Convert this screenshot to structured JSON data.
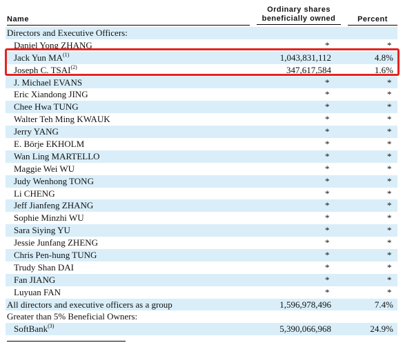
{
  "header": {
    "name": "Name",
    "shares_line1": "Ordinary shares",
    "shares_line2": "beneficially owned",
    "percent": "Percent"
  },
  "rows": [
    {
      "name": "Directors and Executive Officers:",
      "shares": "",
      "percent": "",
      "indent": false
    },
    {
      "name": "Daniel Yong ZHANG",
      "shares": "*",
      "percent": "*",
      "indent": true
    },
    {
      "name": "Jack Yun MA",
      "sup": "(1)",
      "shares": "1,043,831,112",
      "percent": "4.8%",
      "indent": true
    },
    {
      "name": "Joseph C. TSAI",
      "sup": "(2)",
      "shares": "347,617,584",
      "percent": "1.6%",
      "indent": true
    },
    {
      "name": "J. Michael EVANS",
      "shares": "*",
      "percent": "*",
      "indent": true
    },
    {
      "name": "Eric Xiandong JING",
      "shares": "*",
      "percent": "*",
      "indent": true
    },
    {
      "name": "Chee Hwa TUNG",
      "shares": "*",
      "percent": "*",
      "indent": true
    },
    {
      "name": "Walter Teh Ming KWAUK",
      "shares": "*",
      "percent": "*",
      "indent": true
    },
    {
      "name": "Jerry YANG",
      "shares": "*",
      "percent": "*",
      "indent": true
    },
    {
      "name": "E. Börje EKHOLM",
      "shares": "*",
      "percent": "*",
      "indent": true
    },
    {
      "name": "Wan Ling MARTELLO",
      "shares": "*",
      "percent": "*",
      "indent": true
    },
    {
      "name": "Maggie Wei WU",
      "shares": "*",
      "percent": "*",
      "indent": true
    },
    {
      "name": "Judy Wenhong TONG",
      "shares": "*",
      "percent": "*",
      "indent": true
    },
    {
      "name": "Li CHENG",
      "shares": "*",
      "percent": "*",
      "indent": true
    },
    {
      "name": "Jeff Jianfeng ZHANG",
      "shares": "*",
      "percent": "*",
      "indent": true
    },
    {
      "name": "Sophie Minzhi WU",
      "shares": "*",
      "percent": "*",
      "indent": true
    },
    {
      "name": "Sara Siying YU",
      "shares": "*",
      "percent": "*",
      "indent": true
    },
    {
      "name": "Jessie Junfang ZHENG",
      "shares": "*",
      "percent": "*",
      "indent": true
    },
    {
      "name": "Chris Pen-hung TUNG",
      "shares": "*",
      "percent": "*",
      "indent": true
    },
    {
      "name": "Trudy Shan DAI",
      "shares": "*",
      "percent": "*",
      "indent": true
    },
    {
      "name": "Fan JIANG",
      "shares": "*",
      "percent": "*",
      "indent": true
    },
    {
      "name": "Luyuan FAN",
      "shares": "*",
      "percent": "*",
      "indent": true
    },
    {
      "name": "All directors and executive officers as a group",
      "shares": "1,596,978,496",
      "percent": "7.4%",
      "indent": false
    },
    {
      "name": "Greater than 5% Beneficial Owners:",
      "shares": "",
      "percent": "",
      "indent": false
    },
    {
      "name": "SoftBank",
      "sup": "(3)",
      "shares": "5,390,066,968",
      "percent": "24.9%",
      "indent": true
    }
  ],
  "highlight_color": "#e5231f",
  "shade_color": "#d9eef8"
}
